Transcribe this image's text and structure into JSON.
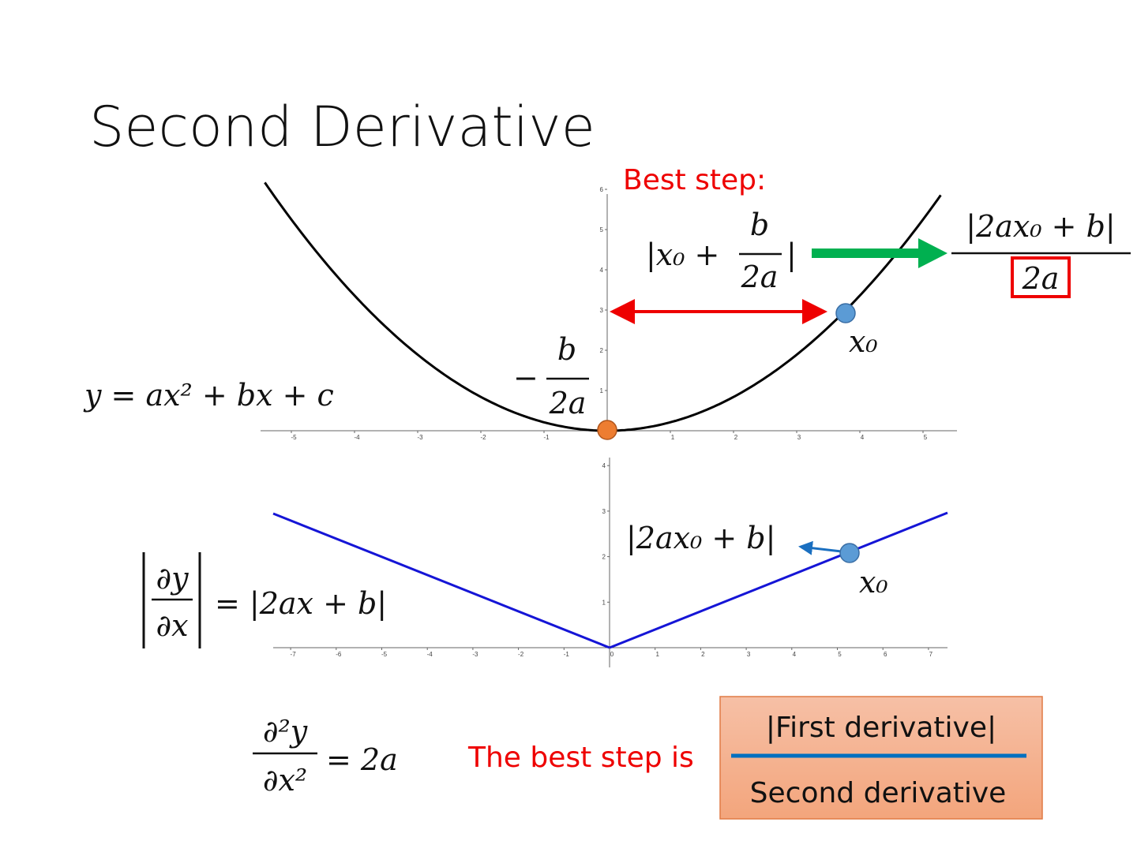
{
  "title": "Second Derivative",
  "best_step": {
    "label": "Best step:",
    "expression": {
      "prefix": "|x₀ +",
      "numerator": "b",
      "denominator": "2a",
      "suffix": "|"
    },
    "result": {
      "numerator": "|2ax₀ + b|",
      "denominator": "2a"
    }
  },
  "top_plot": {
    "equation": "y = ax² + bx + c",
    "vertex": {
      "minus": "−",
      "numerator": "b",
      "denominator": "2a"
    },
    "point_label": "x₀",
    "xticks": [
      -5,
      -4,
      -3,
      -2,
      -1,
      1,
      2,
      3,
      4,
      5
    ],
    "yticks": [
      1,
      2,
      3,
      4,
      5,
      6
    ]
  },
  "bottom_plot": {
    "equation": {
      "numerator": "∂y",
      "denominator": "∂x",
      "right": "= |2ax + b|"
    },
    "point_annotation": "|2ax₀ + b|",
    "point_label": "x₀",
    "xticks": [
      -7,
      -6,
      -5,
      -4,
      -3,
      -2,
      -1,
      0,
      1,
      2,
      3,
      4,
      5,
      6,
      7
    ],
    "yticks": [
      1,
      2,
      3,
      4
    ]
  },
  "second_derivative": {
    "numerator": "∂²y",
    "denominator": "∂x²",
    "right": "= 2a"
  },
  "conclusion": {
    "label": "The best step is",
    "numerator": "|First derivative|",
    "denominator": "Second derivative"
  }
}
